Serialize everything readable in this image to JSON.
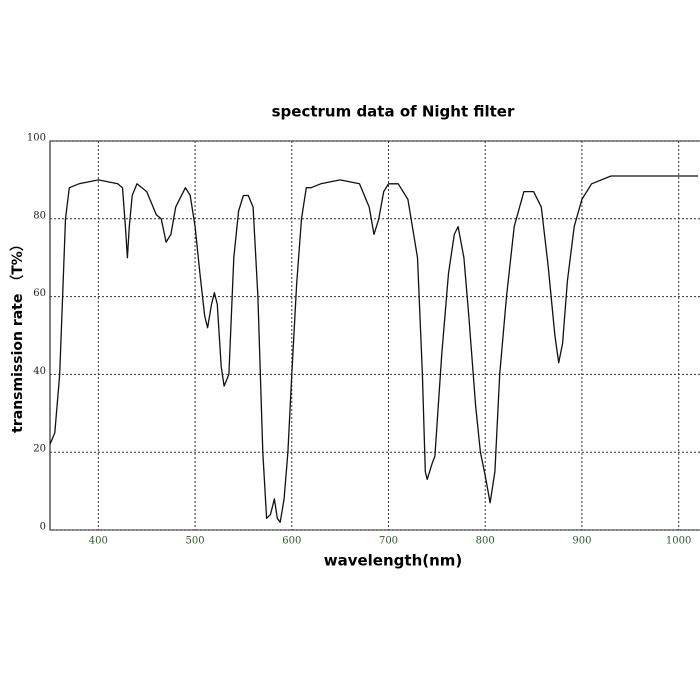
{
  "chart_data": {
    "type": "line",
    "title": "spectrum data of Night filter",
    "x_label": "wavelength(nm)",
    "y_label": "transmission rate （T%）",
    "x": [
      350,
      355,
      360,
      363,
      366,
      370,
      380,
      400,
      420,
      425,
      428,
      430,
      432,
      435,
      440,
      450,
      460,
      465,
      470,
      475,
      480,
      490,
      495,
      500,
      505,
      510,
      513,
      517,
      520,
      523,
      527,
      530,
      535,
      540,
      545,
      550,
      555,
      560,
      565,
      570,
      574,
      578,
      582,
      585,
      588,
      592,
      596,
      600,
      605,
      610,
      615,
      620,
      630,
      650,
      670,
      680,
      685,
      690,
      695,
      700,
      710,
      720,
      730,
      735,
      738,
      740,
      745,
      748,
      755,
      762,
      768,
      772,
      778,
      783,
      790,
      795,
      800,
      805,
      810,
      815,
      822,
      830,
      840,
      850,
      858,
      865,
      872,
      876,
      880,
      885,
      892,
      900,
      910,
      930,
      1020
    ],
    "values": [
      22,
      25,
      40,
      60,
      80,
      88,
      89,
      90,
      89,
      88,
      78,
      70,
      78,
      86,
      89,
      87,
      81,
      80,
      74,
      76,
      83,
      88,
      86,
      78,
      66,
      55,
      52,
      58,
      61,
      58,
      42,
      37,
      40,
      70,
      82,
      86,
      86,
      83,
      60,
      20,
      3,
      4,
      8,
      3,
      2,
      8,
      20,
      40,
      63,
      80,
      88,
      88,
      89,
      90,
      89,
      83,
      76,
      80,
      87,
      89,
      89,
      85,
      70,
      40,
      15,
      13,
      17,
      19,
      45,
      66,
      76,
      78,
      70,
      55,
      32,
      20,
      14,
      7,
      15,
      40,
      60,
      78,
      87,
      87,
      83,
      68,
      50,
      43,
      48,
      64,
      78,
      85,
      89,
      91,
      91
    ],
    "color": "#111111",
    "xlim": [
      350,
      1020
    ],
    "ylim": [
      0,
      100
    ],
    "xticks": [
      400,
      500,
      600,
      700,
      800,
      900,
      1000
    ],
    "yticks": [
      0,
      20,
      40,
      60,
      80,
      100
    ],
    "grid": true
  }
}
